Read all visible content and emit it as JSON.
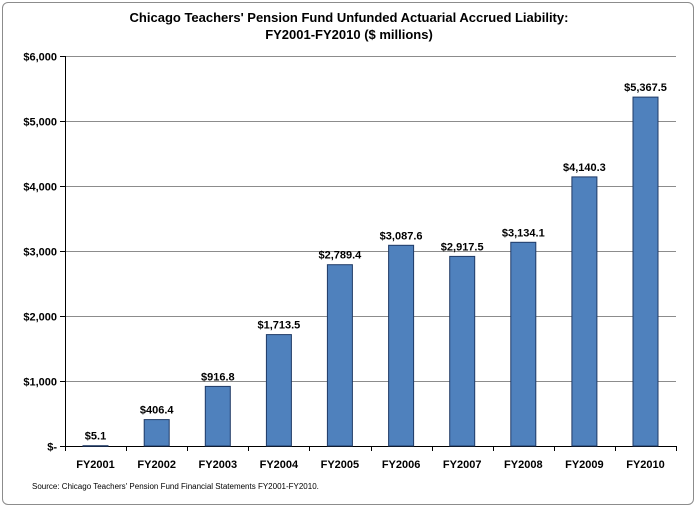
{
  "chart_data": {
    "type": "bar",
    "title": "Chicago Teachers' Pension Fund Unfunded Actuarial Accrued Liability:",
    "subtitle": "FY2001-FY2010 ($ millions)",
    "categories": [
      "FY2001",
      "FY2002",
      "FY2003",
      "FY2004",
      "FY2005",
      "FY2006",
      "FY2007",
      "FY2008",
      "FY2009",
      "FY2010"
    ],
    "values": [
      5.1,
      406.4,
      916.8,
      1713.5,
      2789.4,
      3087.6,
      2917.5,
      3134.1,
      4140.3,
      5367.5
    ],
    "data_labels": [
      "$5.1",
      "$406.4",
      "$916.8",
      "$1,713.5",
      "$2,789.4",
      "$3,087.6",
      "$2,917.5",
      "$3,134.1",
      "$4,140.3",
      "$5,367.5"
    ],
    "yticks": [
      0,
      1000,
      2000,
      3000,
      4000,
      5000,
      6000
    ],
    "ytick_labels": [
      "$-",
      "$1,000",
      "$2,000",
      "$3,000",
      "$4,000",
      "$5,000",
      "$6,000"
    ],
    "ylim": [
      0,
      6000
    ],
    "xlabel": "",
    "ylabel": "",
    "grid": true,
    "bar_color": "#4f81bd",
    "bar_edge_color": "#1f3a66",
    "source": "Source: Chicago Teachers' Pension Fund Financial Statements FY2001-FY2010."
  }
}
